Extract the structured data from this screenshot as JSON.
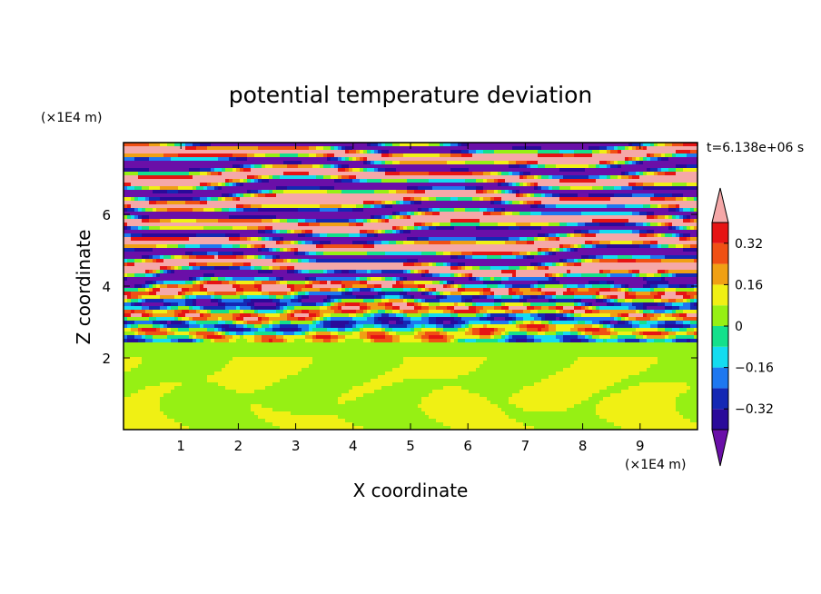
{
  "chart_data": {
    "type": "heatmap",
    "title": "potential temperature deviation",
    "time_label": "t=6.138e+06 s",
    "xlabel": "X coordinate",
    "ylabel": "Z coordinate",
    "x_unit": "(×1E4 m)",
    "y_unit": "(×1E4 m)",
    "xlim": [
      0,
      10
    ],
    "ylim": [
      0,
      8
    ],
    "x_ticks": [
      1,
      2,
      3,
      4,
      5,
      6,
      7,
      8,
      9
    ],
    "y_ticks": [
      2,
      4,
      6
    ],
    "colorbar": {
      "levels": [
        -0.4,
        -0.32,
        -0.24,
        -0.16,
        -0.08,
        0,
        0.08,
        0.16,
        0.24,
        0.32,
        0.4
      ],
      "labels": [
        "0.32",
        "0.16",
        "0",
        "−0.16",
        "−0.32"
      ],
      "label_values": [
        0.32,
        0.16,
        0,
        -0.16,
        -0.32
      ],
      "colors": [
        "#6a0fa8",
        "#2a0a9a",
        "#1428b4",
        "#1e78f0",
        "#14dcf0",
        "#14e08c",
        "#96f014",
        "#f0f014",
        "#f0a014",
        "#f05014",
        "#e61414",
        "#f5a8a8"
      ]
    }
  }
}
